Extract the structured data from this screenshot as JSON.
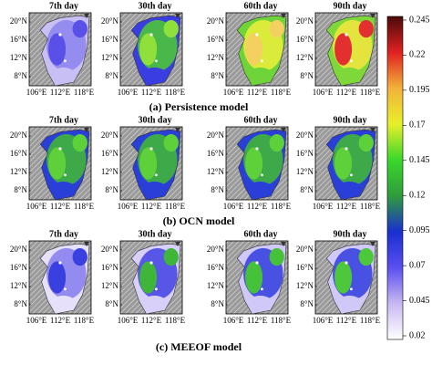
{
  "rows": [
    {
      "caption": "(a) Persistence model",
      "panels": [
        {
          "title": "7th day"
        },
        {
          "title": "30th day"
        },
        {
          "title": "60th day"
        },
        {
          "title": "90th day"
        }
      ]
    },
    {
      "caption": "(b) OCN model",
      "panels": [
        {
          "title": "7th day"
        },
        {
          "title": "30th day"
        },
        {
          "title": "60th day"
        },
        {
          "title": "90th day"
        }
      ]
    },
    {
      "caption": "(c) MEEOF model",
      "panels": [
        {
          "title": "7th day"
        },
        {
          "title": "30th day"
        },
        {
          "title": "60th day"
        },
        {
          "title": "90th day"
        }
      ]
    }
  ],
  "lat_labels": [
    "20°N",
    "16°N",
    "12°N",
    "8°N"
  ],
  "lon_labels": [
    "106°E",
    "112°E",
    "118°E"
  ],
  "colorbar": {
    "ticks": [
      0.02,
      0.045,
      0.07,
      0.095,
      0.12,
      0.145,
      0.17,
      0.195,
      0.22,
      0.245
    ],
    "colors": [
      "#ffffff",
      "#c9b8f2",
      "#5a4ff0",
      "#1a2fd0",
      "#2f9c3c",
      "#39d82a",
      "#e8ef2a",
      "#f2b23a",
      "#e02020",
      "#4a0a0a"
    ]
  }
}
